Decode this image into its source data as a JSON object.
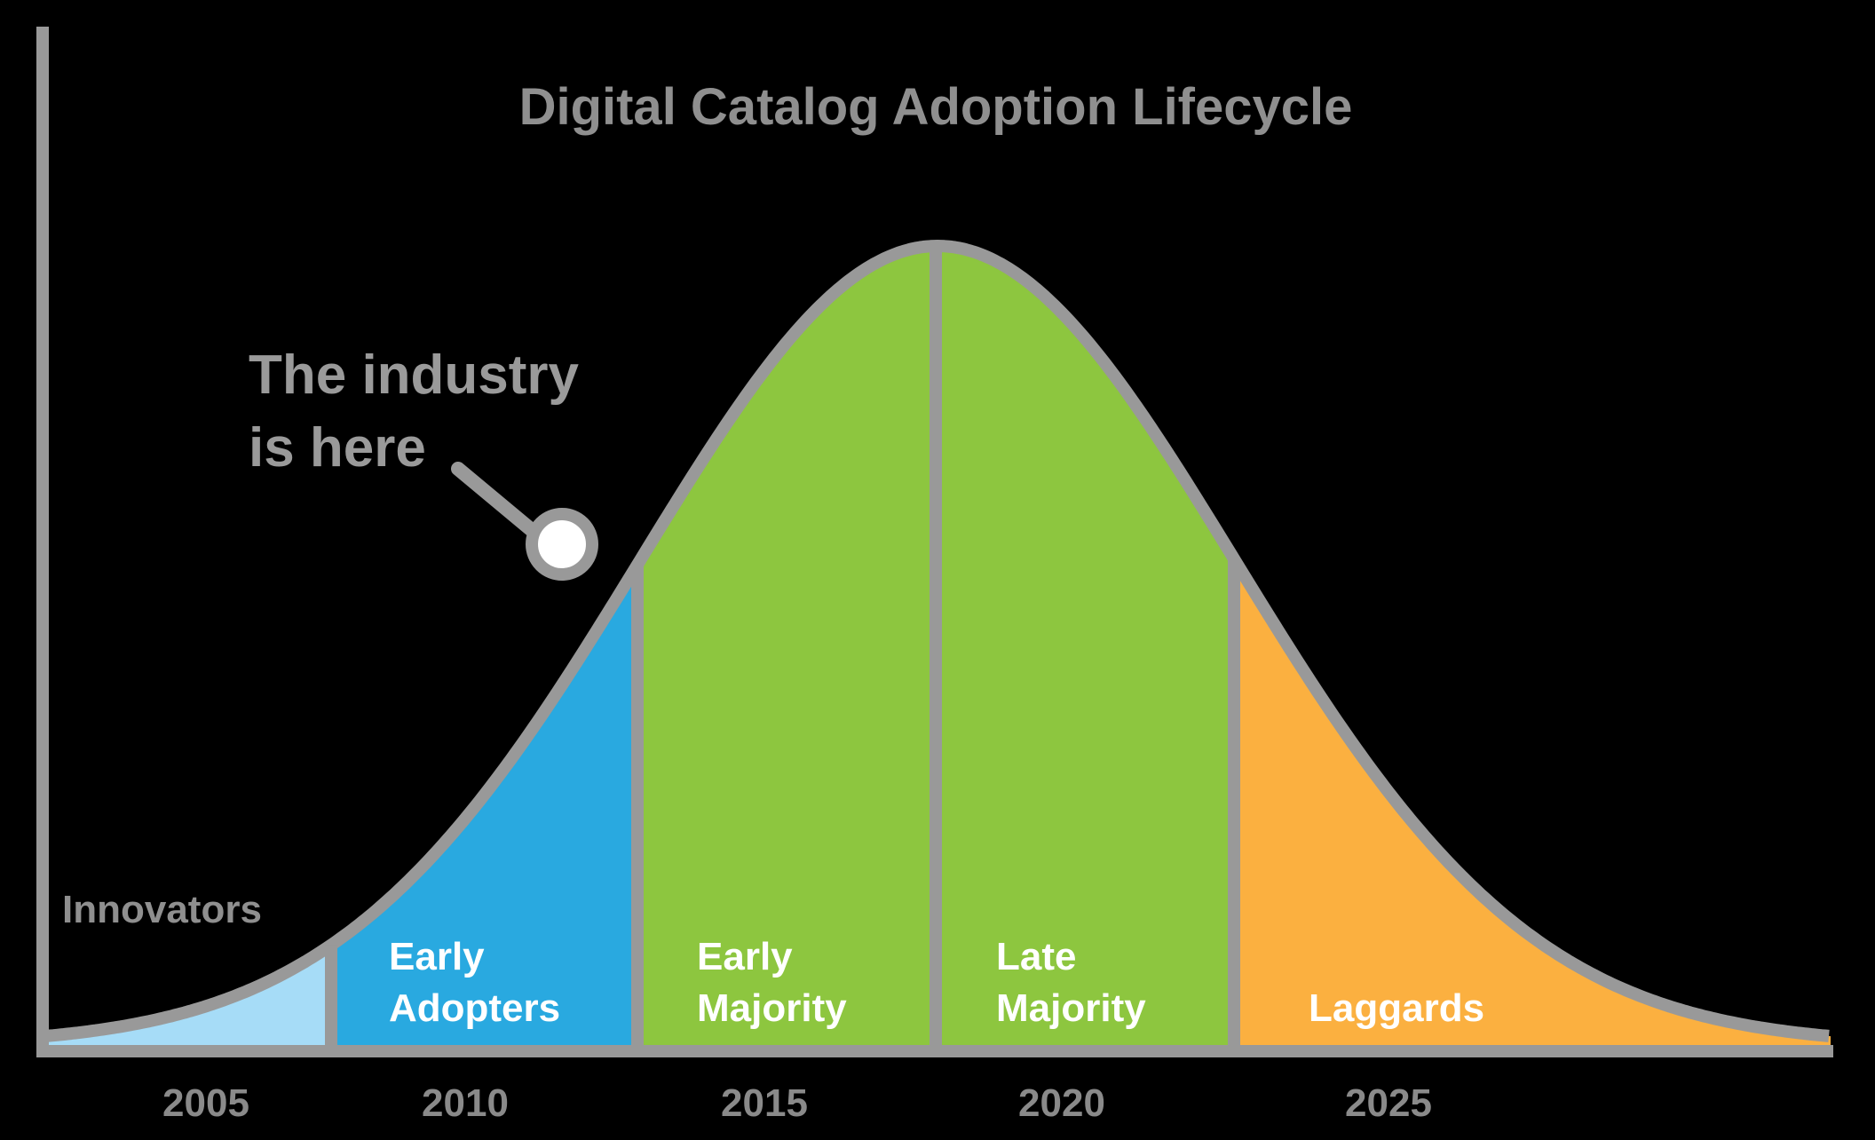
{
  "title": "Digital Catalog Adoption Lifecycle",
  "callout": {
    "line1": "The industry",
    "line2": "is here"
  },
  "segments": [
    {
      "label1": "",
      "label2": "",
      "color": "#a6dcf7"
    },
    {
      "label1": "Early",
      "label2": "Adopters",
      "color": "#29a9e0"
    },
    {
      "label1": "Early",
      "label2": "Majority",
      "color": "#8dc63f"
    },
    {
      "label1": "Late",
      "label2": "Majority",
      "color": "#8dc63f"
    },
    {
      "label1": "",
      "label2": "Laggards",
      "color": "#fbb040"
    }
  ],
  "innovators_label": "Innovators",
  "years": [
    "2005",
    "2010",
    "2015",
    "2020",
    "2025"
  ],
  "colors": {
    "background": "#000000",
    "outline": "#999999",
    "marker_fill": "#ffffff"
  }
}
